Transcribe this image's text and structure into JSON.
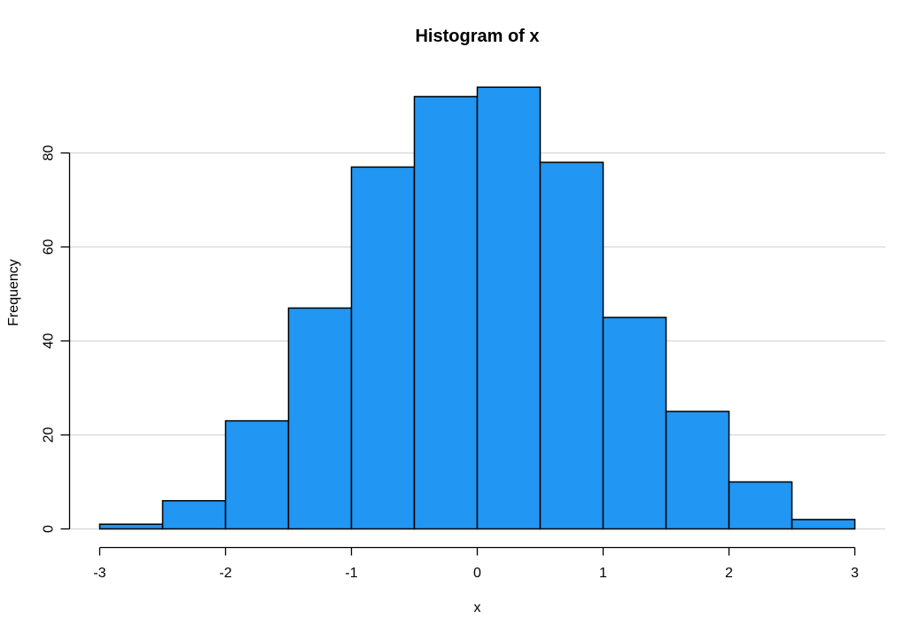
{
  "chart_data": {
    "type": "bar",
    "subtype": "histogram",
    "title": "Histogram of x",
    "xlabel": "x",
    "ylabel": "Frequency",
    "bin_breaks": [
      -3,
      -2.5,
      -2,
      -1.5,
      -1,
      -0.5,
      0,
      0.5,
      1,
      1.5,
      2,
      2.5,
      3
    ],
    "counts": [
      1,
      6,
      23,
      47,
      77,
      92,
      94,
      78,
      45,
      25,
      10,
      2
    ],
    "total_n": 500,
    "x_ticks": [
      "-3",
      "-2",
      "-1",
      "0",
      "1",
      "2",
      "3"
    ],
    "x_tick_values": [
      -3,
      -2,
      -1,
      0,
      1,
      2,
      3
    ],
    "y_ticks": [
      "0",
      "20",
      "40",
      "60",
      "80"
    ],
    "y_tick_values": [
      0,
      20,
      40,
      60,
      80
    ],
    "xlim": [
      -3,
      3
    ],
    "ylim": [
      0,
      94
    ],
    "grid": "horizontal",
    "legend_position": "none",
    "colors": {
      "background": "#ffffff",
      "bar_fill": "#2196F3",
      "bar_border": "#000000",
      "gridline": "#d6d6d6",
      "axis": "#000000",
      "text": "#000000"
    }
  }
}
